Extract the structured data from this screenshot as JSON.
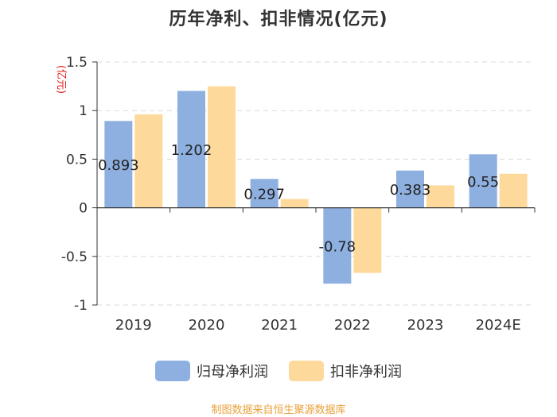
{
  "chart_data": {
    "type": "bar",
    "title": "历年净利、扣非情况(亿元)",
    "ylabel": "(亿元)",
    "xlabel": "",
    "categories": [
      "2019",
      "2020",
      "2021",
      "2022",
      "2023",
      "2024E"
    ],
    "series": [
      {
        "name": "归母净利润",
        "color": "#8eb0e0",
        "values": [
          0.893,
          1.202,
          0.297,
          -0.78,
          0.383,
          0.55
        ]
      },
      {
        "name": "扣非净利润",
        "color": "#fdd99b",
        "values": [
          0.96,
          1.25,
          0.09,
          -0.67,
          0.23,
          0.35
        ]
      }
    ],
    "data_labels": [
      "0.893",
      "1.202",
      "0.297",
      "-0.78",
      "0.383",
      "0.55"
    ],
    "ylim": [
      -1,
      1.5
    ],
    "yticks": [
      1.5,
      1,
      0.5,
      0,
      -0.5,
      -1
    ],
    "ytick_labels": [
      "1.5",
      "1",
      "0.5",
      "0",
      "-0.5",
      "-1"
    ],
    "grid": true,
    "legend_position": "bottom"
  },
  "footer": {
    "text": "制图数据来自恒生聚源数据库",
    "color": "#e8a23a"
  },
  "colors": {
    "axis": "#333333",
    "grid": "#d9d9d9",
    "ylabel": "#e02020"
  }
}
